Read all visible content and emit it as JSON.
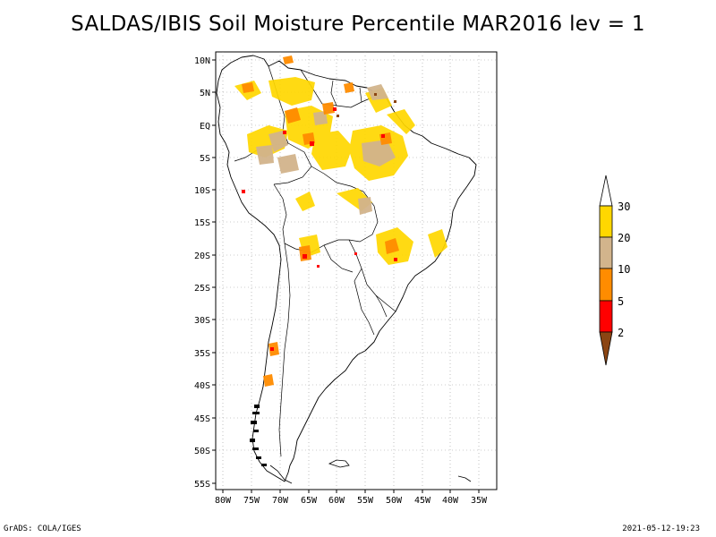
{
  "title": "SALDAS/IBIS Soil Moisture Percentile MAR2016 lev = 1",
  "map": {
    "lat_ticks": [
      "10N",
      "5N",
      "EQ",
      "5S",
      "10S",
      "15S",
      "20S",
      "25S",
      "30S",
      "35S",
      "40S",
      "45S",
      "50S",
      "55S"
    ],
    "lon_ticks": [
      "80W",
      "75W",
      "70W",
      "65W",
      "60W",
      "55W",
      "50W",
      "45W",
      "40W",
      "35W"
    ]
  },
  "legend": {
    "levels": [
      "2",
      "5",
      "10",
      "20",
      "30"
    ],
    "colors": [
      "#8b4513",
      "#ff0000",
      "#ff8c00",
      "#d2b48c",
      "#ffd700",
      "#ffffff"
    ]
  },
  "footer": {
    "left": "GrADS: COLA/IGES",
    "right": "2021-05-12-19:23"
  }
}
